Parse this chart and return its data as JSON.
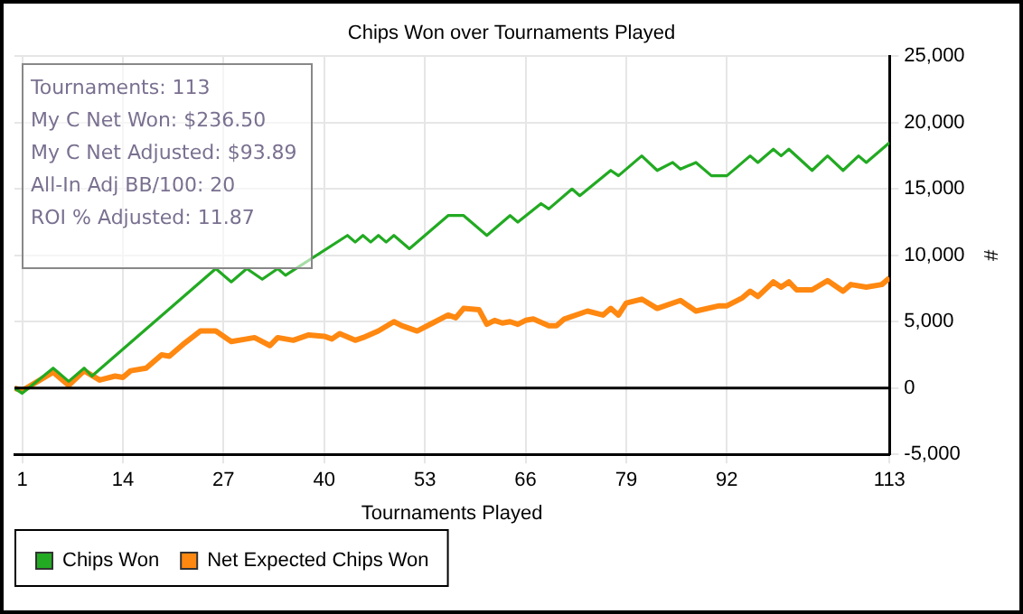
{
  "chart_data": {
    "type": "line",
    "title": "Chips Won over Tournaments Played",
    "xlabel": "Tournaments Played",
    "ylabel": "#",
    "xlim": [
      0,
      113
    ],
    "xticks": [
      1,
      14,
      27,
      40,
      53,
      66,
      79,
      92,
      113
    ],
    "ylim": [
      -5000,
      25000
    ],
    "yticks": [
      {
        "value": -5000,
        "label": "-5,000"
      },
      0,
      {
        "value": 5000,
        "label": "5,000"
      },
      {
        "value": 10000,
        "label": "10,000"
      },
      {
        "value": 15000,
        "label": "15,000"
      },
      {
        "value": 20000,
        "label": "20,000"
      },
      {
        "value": 25000,
        "label": "25,000"
      }
    ],
    "grid": true,
    "legend": "bottom left",
    "marker": "none",
    "line_style": "solid",
    "annotations": [
      "Tournaments: 113",
      "My C Net Won: $236.50",
      "My C Net Adjusted: $93.89",
      "All-In Adj BB/100: 20",
      "ROI % Adjusted: 11.87"
    ],
    "ref_lines": [
      {
        "axis": "y",
        "value": 0,
        "color": "#000000"
      }
    ],
    "series": [
      {
        "name": "Chips Won",
        "color": "#22aa22",
        "x": [
          0,
          1,
          5,
          7,
          9,
          10,
          26,
          28,
          30,
          32,
          34,
          35,
          43,
          44,
          45,
          46,
          47,
          48,
          49,
          51,
          56,
          58,
          61,
          64,
          65,
          68,
          69,
          72,
          73,
          77,
          78,
          81,
          83,
          85,
          86,
          88,
          90,
          92,
          95,
          96,
          98,
          99,
          100,
          103,
          105,
          107,
          109,
          110,
          113
        ],
        "values": [
          0,
          -400,
          1500,
          500,
          1500,
          900,
          9000,
          8000,
          9000,
          8200,
          9000,
          8500,
          11500,
          11000,
          11500,
          11000,
          11500,
          11000,
          11500,
          10500,
          13000,
          13000,
          11500,
          13000,
          12500,
          13900,
          13500,
          15000,
          14500,
          16400,
          16000,
          17500,
          16400,
          17000,
          16500,
          17000,
          16000,
          16000,
          17500,
          17000,
          18000,
          17500,
          18000,
          16400,
          17500,
          16400,
          17500,
          17000,
          18500
        ]
      },
      {
        "name": "Net Expected Chips Won",
        "color": "#ff8811",
        "x": [
          0,
          1,
          5,
          7,
          9,
          11,
          13,
          14,
          15,
          17,
          19,
          20,
          22,
          24,
          26,
          28,
          30,
          31,
          33,
          34,
          36,
          38,
          40,
          41,
          42,
          44,
          45,
          47,
          49,
          50,
          52,
          54,
          56,
          57,
          58,
          60,
          61,
          62,
          63,
          64,
          65,
          66,
          67,
          69,
          70,
          71,
          74,
          76,
          77,
          78,
          79,
          81,
          83,
          86,
          88,
          91,
          92,
          94,
          95,
          96,
          98,
          99,
          100,
          101,
          103,
          105,
          107,
          108,
          110,
          112,
          113
        ],
        "values": [
          0,
          -200,
          1200,
          200,
          1300,
          600,
          900,
          800,
          1300,
          1500,
          2500,
          2400,
          3400,
          4300,
          4300,
          3500,
          3700,
          3800,
          3200,
          3800,
          3600,
          4000,
          3900,
          3700,
          4100,
          3600,
          3800,
          4300,
          5000,
          4700,
          4300,
          4900,
          5500,
          5300,
          6000,
          5900,
          4800,
          5100,
          4900,
          5000,
          4800,
          5100,
          5200,
          4700,
          4700,
          5200,
          5800,
          5500,
          6000,
          5500,
          6400,
          6700,
          6000,
          6600,
          5800,
          6200,
          6200,
          6800,
          7300,
          6900,
          8000,
          7600,
          8000,
          7400,
          7400,
          8100,
          7300,
          7800,
          7600,
          7800,
          8300
        ]
      }
    ]
  }
}
